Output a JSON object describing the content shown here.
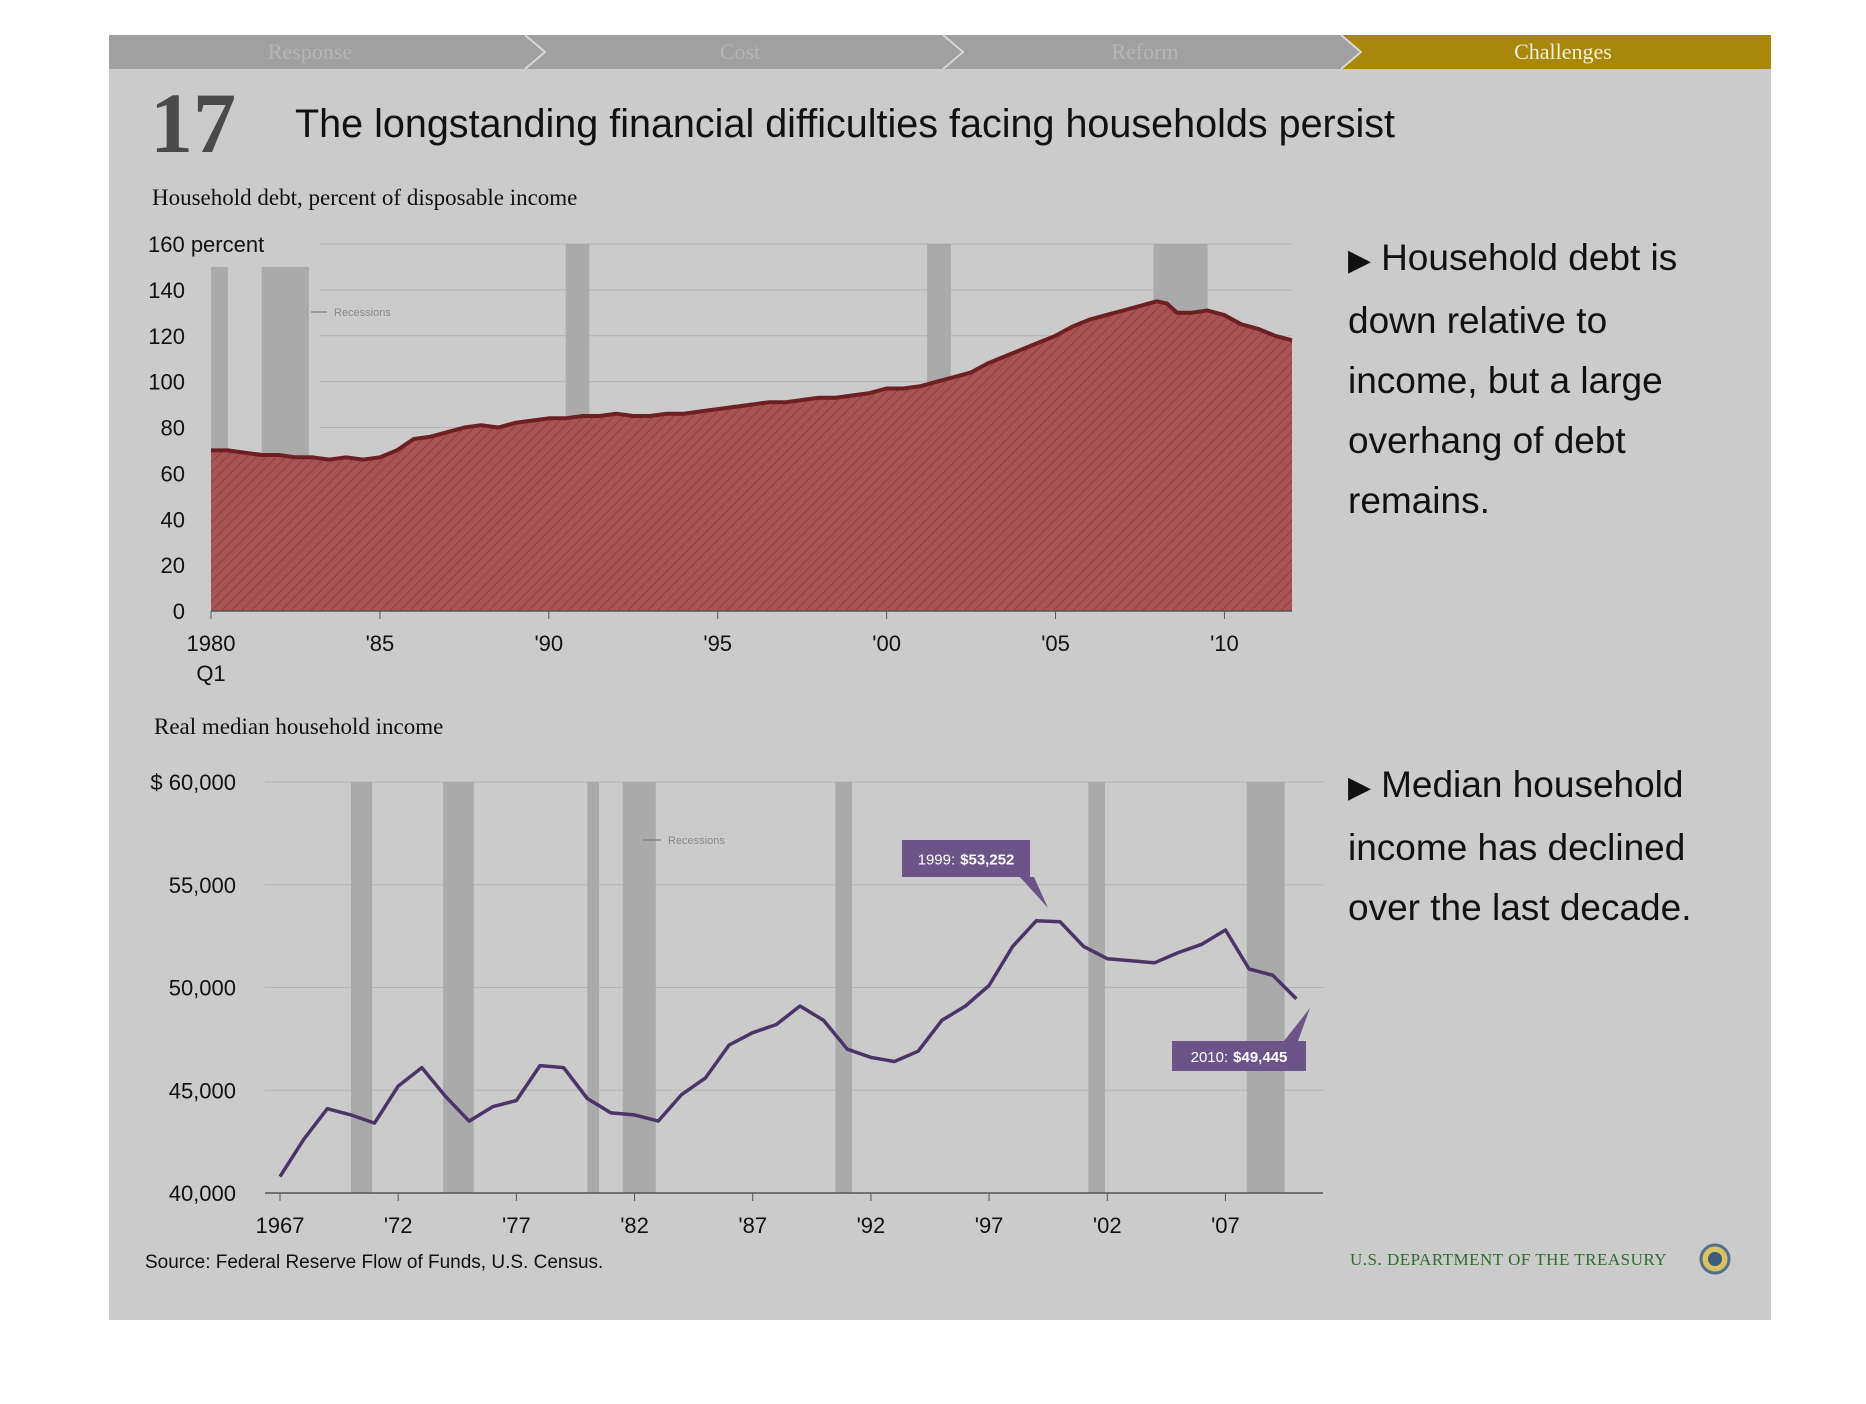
{
  "nav": {
    "tabs": [
      {
        "label": "Response",
        "active": false
      },
      {
        "label": "Cost",
        "active": false
      },
      {
        "label": "Reform",
        "active": false
      },
      {
        "label": "Challenges",
        "active": true
      }
    ],
    "inactive_color": "#a0a0a0",
    "active_color": "#a8870a"
  },
  "header": {
    "number": "17",
    "title": "The longstanding financial difficulties facing households persist"
  },
  "bullets": [
    "Household debt is down relative to income, but a large overhang of debt remains.",
    "Median household income has declined over the last decade."
  ],
  "footer": {
    "source": "Source: Federal Reserve Flow of Funds, U.S. Census.",
    "agency": "U.S. DEPARTMENT OF THE TREASURY"
  },
  "colors": {
    "debt_fill": "#a85455",
    "debt_line": "#6e1f22",
    "income_line": "#4b3468",
    "callout": "#6a5488",
    "recession": "#aaaaaa",
    "agency_text": "#2e6b2e"
  },
  "chart_data": [
    {
      "type": "area",
      "title": "Household debt, percent of disposable income",
      "ylabel": "160 percent",
      "ylim": [
        0,
        160
      ],
      "yticks": [
        0,
        20,
        40,
        60,
        80,
        100,
        120,
        140
      ],
      "xlim": [
        1980,
        2012
      ],
      "xticks": [
        {
          "x": 1980,
          "label": "1980"
        },
        {
          "x": 1985,
          "label": "'85"
        },
        {
          "x": 1990,
          "label": "'90"
        },
        {
          "x": 1995,
          "label": "'95"
        },
        {
          "x": 2000,
          "label": "'00"
        },
        {
          "x": 2005,
          "label": "'05"
        },
        {
          "x": 2010,
          "label": "'10"
        }
      ],
      "x_first_label_sub": "Q1",
      "legend": "Recessions",
      "recessions": [
        [
          1980.0,
          1980.5
        ],
        [
          1981.5,
          1982.9
        ],
        [
          1990.5,
          1991.2
        ],
        [
          2001.2,
          2001.9
        ],
        [
          2007.9,
          2009.5
        ]
      ],
      "series": [
        {
          "values": [
            [
              1980.0,
              70
            ],
            [
              1980.5,
              70
            ],
            [
              1981.0,
              69
            ],
            [
              1981.5,
              68
            ],
            [
              1982.0,
              68
            ],
            [
              1982.5,
              67
            ],
            [
              1983.0,
              67
            ],
            [
              1983.5,
              66
            ],
            [
              1984.0,
              67
            ],
            [
              1984.5,
              66
            ],
            [
              1985.0,
              67
            ],
            [
              1985.5,
              70
            ],
            [
              1986.0,
              75
            ],
            [
              1986.5,
              76
            ],
            [
              1987.0,
              78
            ],
            [
              1987.5,
              80
            ],
            [
              1988.0,
              81
            ],
            [
              1988.5,
              80
            ],
            [
              1989.0,
              82
            ],
            [
              1989.5,
              83
            ],
            [
              1990.0,
              84
            ],
            [
              1990.5,
              84
            ],
            [
              1991.0,
              85
            ],
            [
              1991.5,
              85
            ],
            [
              1992.0,
              86
            ],
            [
              1992.5,
              85
            ],
            [
              1993.0,
              85
            ],
            [
              1993.5,
              86
            ],
            [
              1994.0,
              86
            ],
            [
              1994.5,
              87
            ],
            [
              1995.0,
              88
            ],
            [
              1995.5,
              89
            ],
            [
              1996.0,
              90
            ],
            [
              1996.5,
              91
            ],
            [
              1997.0,
              91
            ],
            [
              1997.5,
              92
            ],
            [
              1998.0,
              93
            ],
            [
              1998.5,
              93
            ],
            [
              1999.0,
              94
            ],
            [
              1999.5,
              95
            ],
            [
              2000.0,
              97
            ],
            [
              2000.5,
              97
            ],
            [
              2001.0,
              98
            ],
            [
              2001.5,
              100
            ],
            [
              2002.0,
              102
            ],
            [
              2002.5,
              104
            ],
            [
              2003.0,
              108
            ],
            [
              2003.5,
              111
            ],
            [
              2004.0,
              114
            ],
            [
              2004.5,
              117
            ],
            [
              2005.0,
              120
            ],
            [
              2005.5,
              124
            ],
            [
              2006.0,
              127
            ],
            [
              2006.5,
              129
            ],
            [
              2007.0,
              131
            ],
            [
              2007.5,
              133
            ],
            [
              2008.0,
              135
            ],
            [
              2008.3,
              134
            ],
            [
              2008.6,
              130
            ],
            [
              2009.0,
              130
            ],
            [
              2009.5,
              131
            ],
            [
              2010.0,
              129
            ],
            [
              2010.5,
              125
            ],
            [
              2011.0,
              123
            ],
            [
              2011.5,
              120
            ],
            [
              2012.0,
              118
            ]
          ]
        }
      ]
    },
    {
      "type": "line",
      "title": "Real median household income",
      "ylim": [
        40000,
        60000
      ],
      "yticks": [
        {
          "y": 40000,
          "label": "40,000"
        },
        {
          "y": 45000,
          "label": "45,000"
        },
        {
          "y": 50000,
          "label": "50,000"
        },
        {
          "y": 55000,
          "label": "55,000"
        },
        {
          "y": 60000,
          "label": "$ 60,000"
        }
      ],
      "xlim": [
        1967,
        2011
      ],
      "xticks": [
        {
          "x": 1967,
          "label": "1967"
        },
        {
          "x": 1972,
          "label": "'72"
        },
        {
          "x": 1977,
          "label": "'77"
        },
        {
          "x": 1982,
          "label": "'82"
        },
        {
          "x": 1987,
          "label": "'87"
        },
        {
          "x": 1992,
          "label": "'92"
        },
        {
          "x": 1997,
          "label": "'97"
        },
        {
          "x": 2002,
          "label": "'02"
        },
        {
          "x": 2007,
          "label": "'07"
        }
      ],
      "legend": "Recessions",
      "recessions": [
        [
          1970.0,
          1970.9
        ],
        [
          1973.9,
          1975.2
        ],
        [
          1980.0,
          1980.5
        ],
        [
          1981.5,
          1982.9
        ],
        [
          1990.5,
          1991.2
        ],
        [
          2001.2,
          2001.9
        ],
        [
          2007.9,
          2009.5
        ]
      ],
      "x": [
        1967,
        1968,
        1969,
        1970,
        1971,
        1972,
        1973,
        1974,
        1975,
        1976,
        1977,
        1978,
        1979,
        1980,
        1981,
        1982,
        1983,
        1984,
        1985,
        1986,
        1987,
        1988,
        1989,
        1990,
        1991,
        1992,
        1993,
        1994,
        1995,
        1996,
        1997,
        1998,
        1999,
        2000,
        2001,
        2002,
        2003,
        2004,
        2005,
        2006,
        2007,
        2008,
        2009,
        2010
      ],
      "series": [
        {
          "values": [
            40800,
            42600,
            44100,
            43800,
            43400,
            45200,
            46100,
            44700,
            43500,
            44200,
            44500,
            46200,
            46100,
            44600,
            43900,
            43800,
            43500,
            44800,
            45600,
            47200,
            47800,
            48200,
            49100,
            48400,
            47000,
            46600,
            46400,
            46900,
            48400,
            49100,
            50100,
            52000,
            53252,
            53200,
            52000,
            51400,
            51300,
            51200,
            51700,
            52100,
            52800,
            50900,
            50600,
            49445
          ]
        }
      ],
      "annotations": [
        {
          "x": 1999,
          "year": "1999:",
          "value": "$53,252"
        },
        {
          "x": 2010,
          "year": "2010:",
          "value": "$49,445"
        }
      ]
    }
  ]
}
